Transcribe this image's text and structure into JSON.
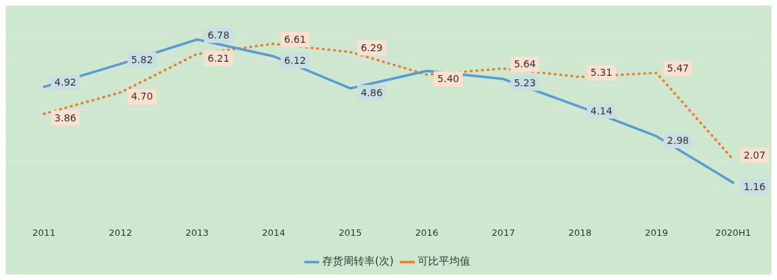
{
  "chart_data": {
    "type": "line",
    "categories": [
      "2011",
      "2012",
      "2013",
      "2014",
      "2015",
      "2016",
      "2017",
      "2018",
      "2019",
      "2020H1"
    ],
    "series": [
      {
        "name": "存货周转率(次)",
        "color": "#5b9bd5",
        "line_style": "solid",
        "values": [
          4.92,
          5.82,
          6.78,
          6.12,
          4.86,
          5.55,
          5.23,
          4.14,
          2.98,
          1.16
        ],
        "value_labels": [
          "4.92",
          "5.82",
          "6.78",
          "6.12",
          "4.86",
          null,
          "5.23",
          "4.14",
          "2.98",
          "1.16"
        ]
      },
      {
        "name": "可比平均值",
        "color": "#ed7d31",
        "line_style": "dotted",
        "values": [
          3.86,
          4.7,
          6.21,
          6.61,
          6.29,
          5.4,
          5.64,
          5.31,
          5.47,
          2.07
        ],
        "value_labels": [
          "3.86",
          "4.70",
          "6.21",
          "6.61",
          "6.29",
          "5.40",
          "5.64",
          "5.31",
          "5.47",
          "2.07"
        ]
      }
    ],
    "ylim": [
      0,
      8
    ],
    "yticks": [
      {
        "value": 0,
        "label": null
      },
      {
        "value": 1,
        "label": null
      },
      {
        "value": 2,
        "label": null
      },
      {
        "value": 3,
        "label": null
      },
      {
        "value": 4,
        "label": null
      },
      {
        "value": 5,
        "label": null
      },
      {
        "value": 6,
        "label": null
      },
      {
        "value": 7,
        "label": null
      },
      {
        "value": 8,
        "label": null
      }
    ],
    "grid": "y",
    "tick_labels": "x",
    "legend": "bottom",
    "marker": "none"
  }
}
